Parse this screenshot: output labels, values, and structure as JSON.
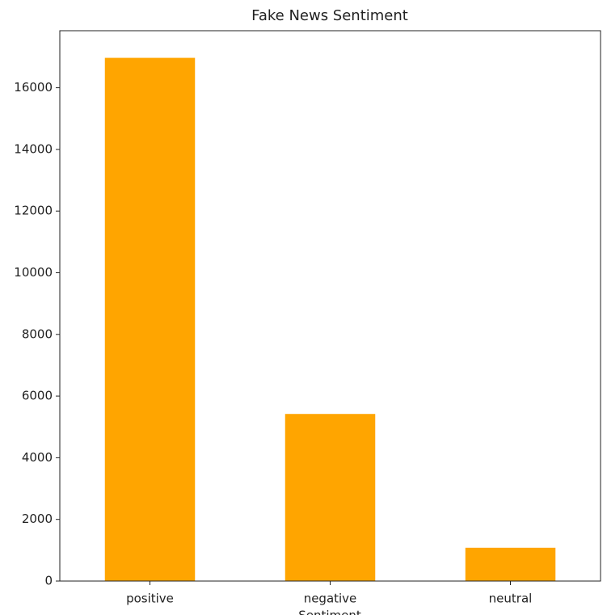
{
  "chart_data": {
    "type": "bar",
    "title": "Fake News Sentiment",
    "x_label": "Sentiment",
    "categories": [
      "positive",
      "negative",
      "neutral"
    ],
    "values": [
      16970,
      5420,
      1080
    ],
    "color": "#ffa500",
    "ylim": [
      0,
      17850
    ],
    "yticks": [
      0,
      2000,
      4000,
      6000,
      8000,
      10000,
      12000,
      14000,
      16000
    ],
    "grid": false
  }
}
